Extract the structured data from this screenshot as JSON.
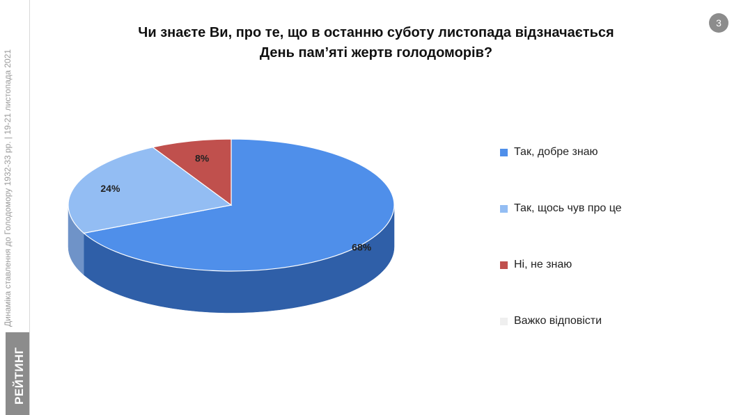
{
  "sidebar": {
    "caption": "Динаміка ставлення до Голодомору 1932-33 рр. | 19-21 листопада 2021",
    "brand": "РЕЙТИНГ"
  },
  "page_number": "3",
  "chart_data": {
    "type": "pie",
    "title_lines": [
      "Чи знаєте Ви, про те, що в останню суботу листопада відзначається",
      "День пам’яті жертв голодоморів?"
    ],
    "categories": [
      "Так, добре знаю",
      "Так, щось чув про це",
      "Ні, не знаю",
      "Важко відповісти"
    ],
    "values": [
      68,
      24,
      8,
      0
    ],
    "labels": [
      "68%",
      "24%",
      "8%",
      ""
    ],
    "colors": [
      "#4f8fea",
      "#93bdf3",
      "#c0504d",
      "#efefef"
    ],
    "side_colors": [
      "#2f5fa8",
      "#6f93c8",
      "#8f3532",
      "#cccccc"
    ],
    "legend_position": "right",
    "style": "3d"
  }
}
